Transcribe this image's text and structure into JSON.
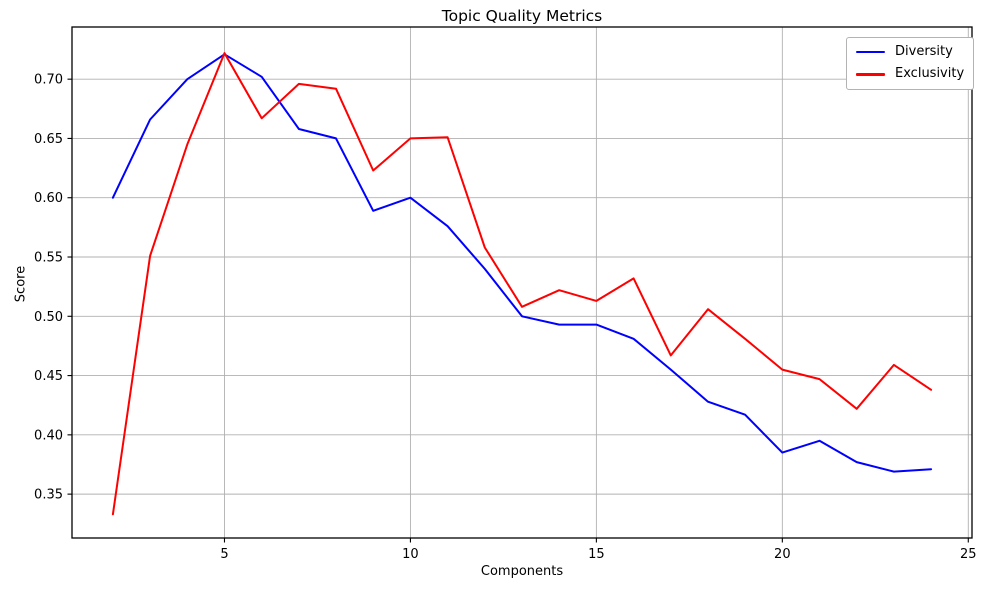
{
  "chart_data": {
    "type": "line",
    "title": "Topic Quality Metrics",
    "xlabel": "Components",
    "ylabel": "Score",
    "x": [
      2,
      3,
      4,
      5,
      6,
      7,
      8,
      9,
      10,
      11,
      12,
      13,
      14,
      15,
      16,
      17,
      18,
      19,
      20,
      21,
      22,
      23,
      24
    ],
    "series": [
      {
        "name": "Diversity",
        "color": "#0000ff",
        "values": [
          0.6,
          0.666,
          0.7,
          0.721,
          0.702,
          0.658,
          0.65,
          0.589,
          0.6,
          0.576,
          0.54,
          0.5,
          0.493,
          0.493,
          0.481,
          0.455,
          0.428,
          0.417,
          0.385,
          0.395,
          0.377,
          0.369,
          0.371
        ]
      },
      {
        "name": "Exclusivity",
        "color": "#ff0000",
        "values": [
          0.333,
          0.551,
          0.645,
          0.722,
          0.667,
          0.696,
          0.692,
          0.623,
          0.65,
          0.651,
          0.558,
          0.508,
          0.522,
          0.513,
          0.532,
          0.467,
          0.506,
          0.481,
          0.455,
          0.447,
          0.422,
          0.459,
          0.438
        ]
      }
    ],
    "xlim": [
      0.9,
      25.1
    ],
    "ylim": [
      0.313,
      0.744
    ],
    "xticks": [
      5,
      10,
      15,
      20,
      25
    ],
    "xtick_labels": [
      "5",
      "10",
      "15",
      "20",
      "25"
    ],
    "yticks": [
      0.35,
      0.4,
      0.45,
      0.5,
      0.55,
      0.6,
      0.65,
      0.7
    ],
    "ytick_labels": [
      "0.35",
      "0.40",
      "0.45",
      "0.50",
      "0.55",
      "0.60",
      "0.65",
      "0.70"
    ],
    "grid": true,
    "grid_color": "#b0b0b0",
    "legend_position": "upper right",
    "background": "#ffffff"
  }
}
